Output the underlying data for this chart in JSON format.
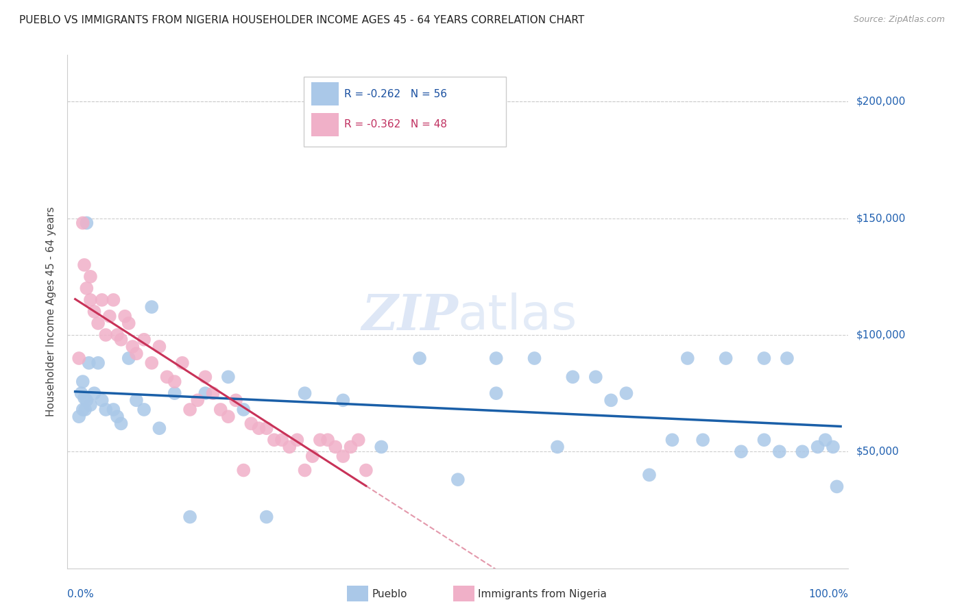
{
  "title": "PUEBLO VS IMMIGRANTS FROM NIGERIA HOUSEHOLDER INCOME AGES 45 - 64 YEARS CORRELATION CHART",
  "source": "Source: ZipAtlas.com",
  "ylabel": "Householder Income Ages 45 - 64 years",
  "xlim": [
    0.0,
    100.0
  ],
  "ylim": [
    0,
    220000
  ],
  "yticks": [
    50000,
    100000,
    150000,
    200000
  ],
  "ytick_labels": [
    "$50,000",
    "$100,000",
    "$150,000",
    "$200,000"
  ],
  "pueblo_R": -0.262,
  "pueblo_N": 56,
  "nigeria_R": -0.362,
  "nigeria_N": 48,
  "pueblo_color": "#aac8e8",
  "nigeria_color": "#f0b0c8",
  "pueblo_line_color": "#1a5fa8",
  "nigeria_line_color": "#c83258",
  "pueblo_x": [
    0.5,
    0.8,
    1.0,
    1.0,
    1.2,
    1.3,
    1.5,
    1.5,
    1.8,
    2.0,
    2.5,
    3.0,
    3.5,
    4.0,
    5.0,
    5.5,
    6.0,
    7.0,
    8.0,
    9.0,
    10.0,
    11.0,
    13.0,
    15.0,
    17.0,
    20.0,
    22.0,
    25.0,
    30.0,
    35.0,
    40.0,
    45.0,
    50.0,
    55.0,
    55.0,
    60.0,
    63.0,
    65.0,
    68.0,
    70.0,
    72.0,
    75.0,
    78.0,
    80.0,
    82.0,
    85.0,
    87.0,
    90.0,
    90.0,
    92.0,
    93.0,
    95.0,
    97.0,
    98.0,
    99.0,
    99.5
  ],
  "pueblo_y": [
    65000,
    75000,
    68000,
    80000,
    73000,
    68000,
    72000,
    148000,
    88000,
    70000,
    75000,
    88000,
    72000,
    68000,
    68000,
    65000,
    62000,
    90000,
    72000,
    68000,
    112000,
    60000,
    75000,
    22000,
    75000,
    82000,
    68000,
    22000,
    75000,
    72000,
    52000,
    90000,
    38000,
    90000,
    75000,
    90000,
    52000,
    82000,
    82000,
    72000,
    75000,
    40000,
    55000,
    90000,
    55000,
    90000,
    50000,
    90000,
    55000,
    50000,
    90000,
    50000,
    52000,
    55000,
    52000,
    35000
  ],
  "nigeria_x": [
    0.5,
    1.0,
    1.2,
    1.5,
    2.0,
    2.0,
    2.5,
    3.0,
    3.5,
    4.0,
    4.5,
    5.0,
    5.5,
    6.0,
    6.5,
    7.0,
    7.5,
    8.0,
    9.0,
    10.0,
    11.0,
    12.0,
    13.0,
    14.0,
    15.0,
    16.0,
    17.0,
    18.0,
    19.0,
    20.0,
    21.0,
    22.0,
    23.0,
    24.0,
    25.0,
    26.0,
    27.0,
    28.0,
    29.0,
    30.0,
    31.0,
    32.0,
    33.0,
    34.0,
    35.0,
    36.0,
    37.0,
    38.0
  ],
  "nigeria_y": [
    90000,
    148000,
    130000,
    120000,
    115000,
    125000,
    110000,
    105000,
    115000,
    100000,
    108000,
    115000,
    100000,
    98000,
    108000,
    105000,
    95000,
    92000,
    98000,
    88000,
    95000,
    82000,
    80000,
    88000,
    68000,
    72000,
    82000,
    75000,
    68000,
    65000,
    72000,
    42000,
    62000,
    60000,
    60000,
    55000,
    55000,
    52000,
    55000,
    42000,
    48000,
    55000,
    55000,
    52000,
    48000,
    52000,
    55000,
    42000
  ]
}
